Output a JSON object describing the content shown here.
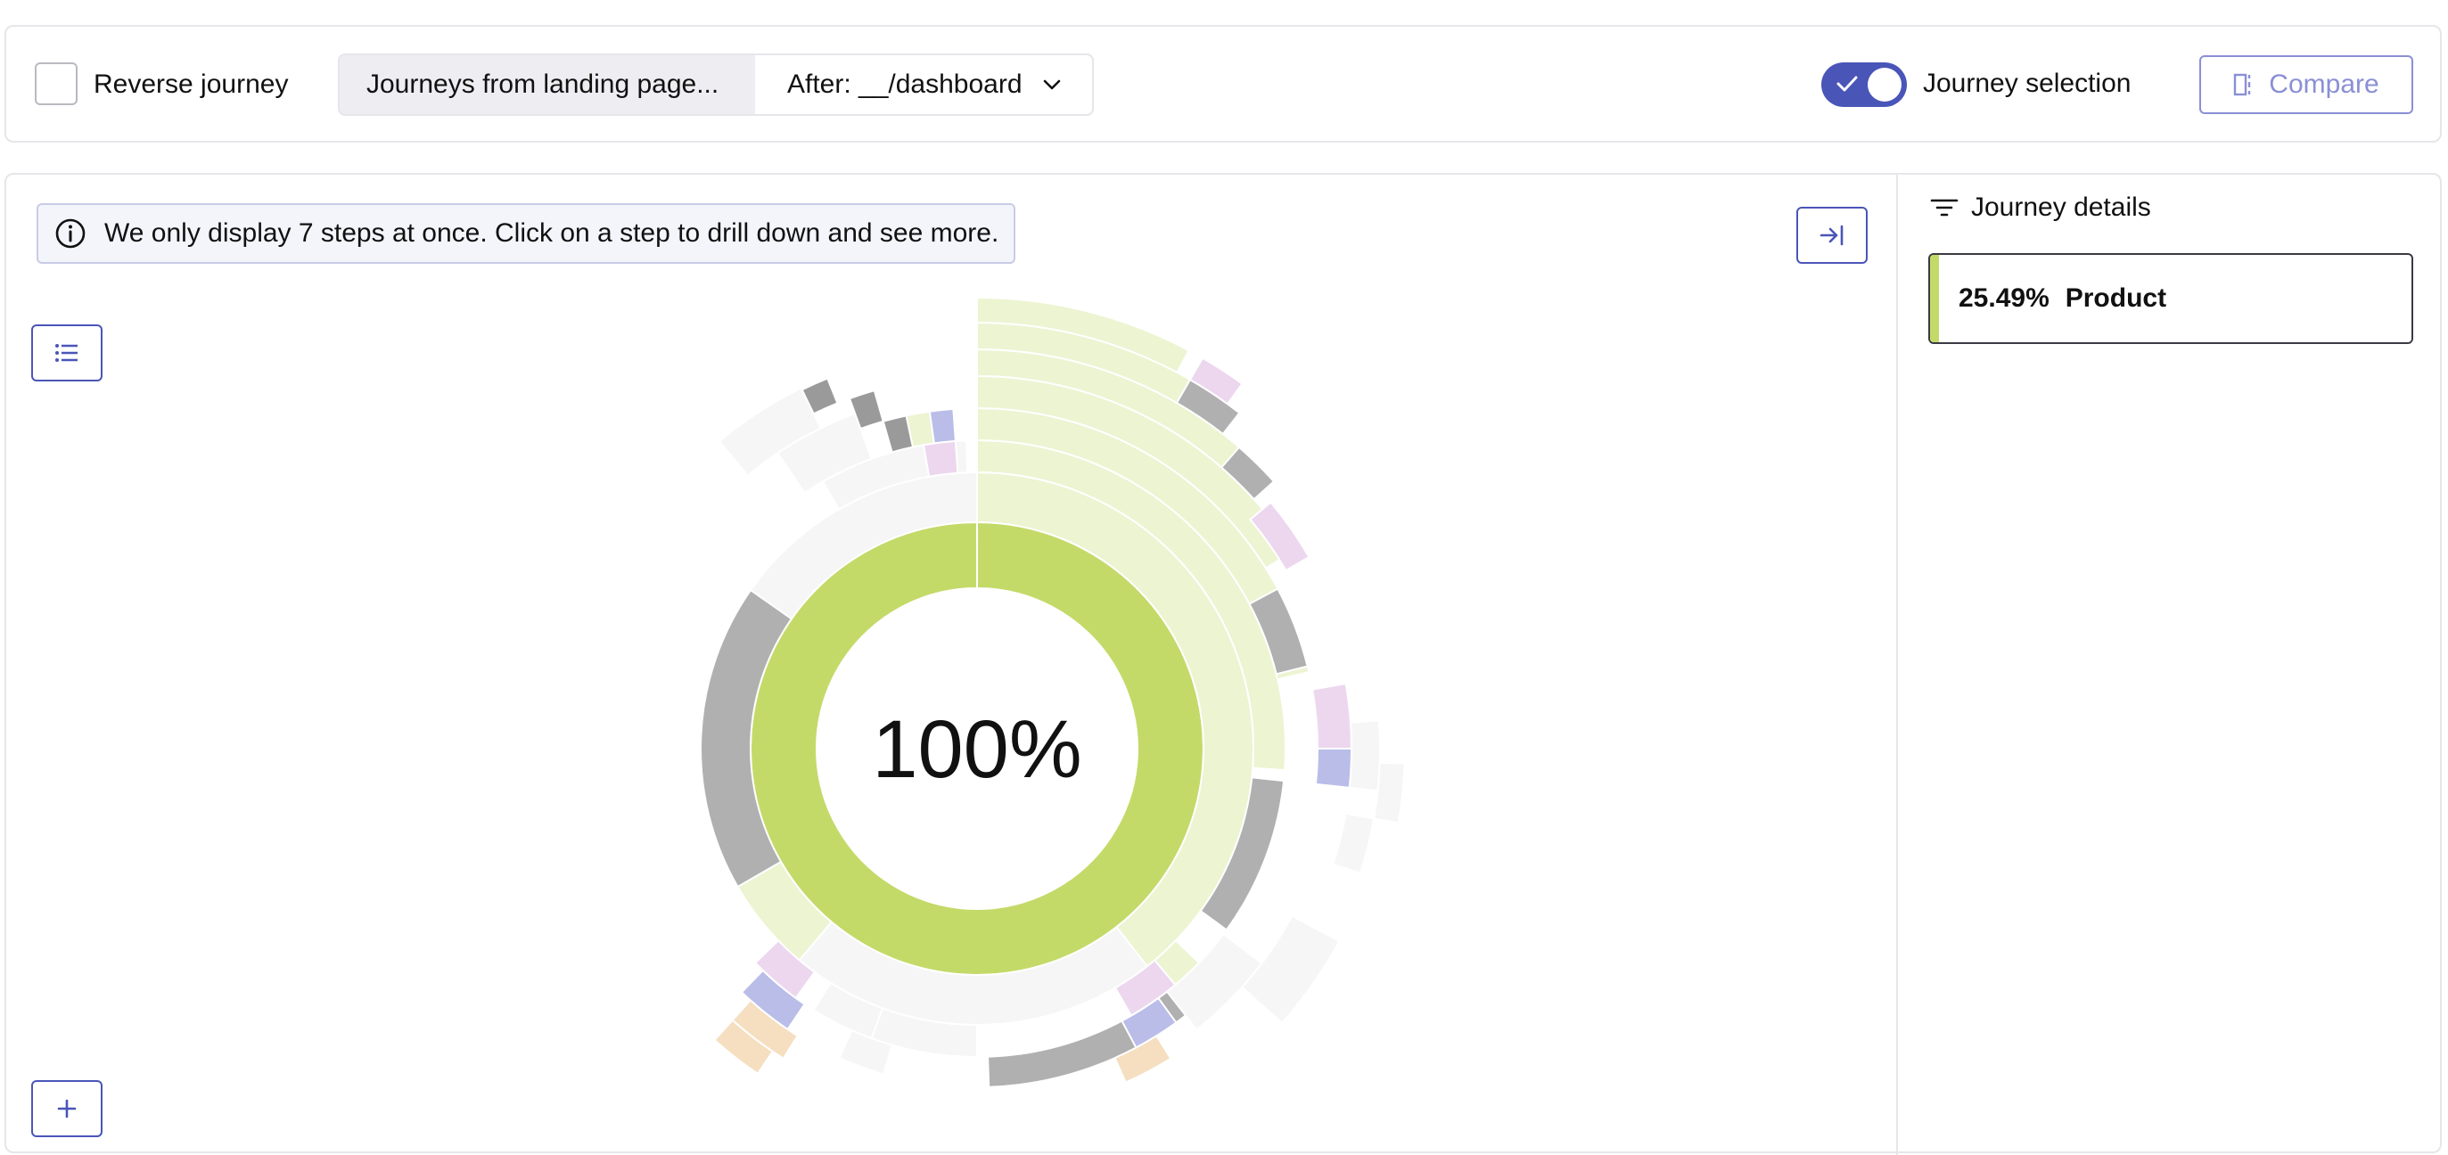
{
  "toolbar": {
    "reverse_label": "Reverse journey",
    "reverse_checked": false,
    "journey_source": "Journeys from landing page...",
    "journey_after": "After: __/dashboard",
    "journey_selection_label": "Journey selection",
    "journey_selection_on": true,
    "compare_label": "Compare"
  },
  "main": {
    "info_text": "We only display 7 steps at once. Click on a step to drill down and see more.",
    "center_label": "100%"
  },
  "details": {
    "title": "Journey details",
    "card": {
      "percent": "25.49%",
      "name": "Product"
    }
  },
  "colors": {
    "accent": "#4a55b8",
    "green": "#c3da69",
    "light_green": "#ecf4d2",
    "gray": "#b0b0b0",
    "faint": "#f6f6f6"
  },
  "icons": {
    "dropdown": "chevron-down-icon",
    "compare": "split-panel-icon",
    "info": "info-icon",
    "collapse": "arrow-right-to-bar-icon",
    "list": "list-icon",
    "plus": "plus-icon",
    "filter": "filter-icon"
  }
}
